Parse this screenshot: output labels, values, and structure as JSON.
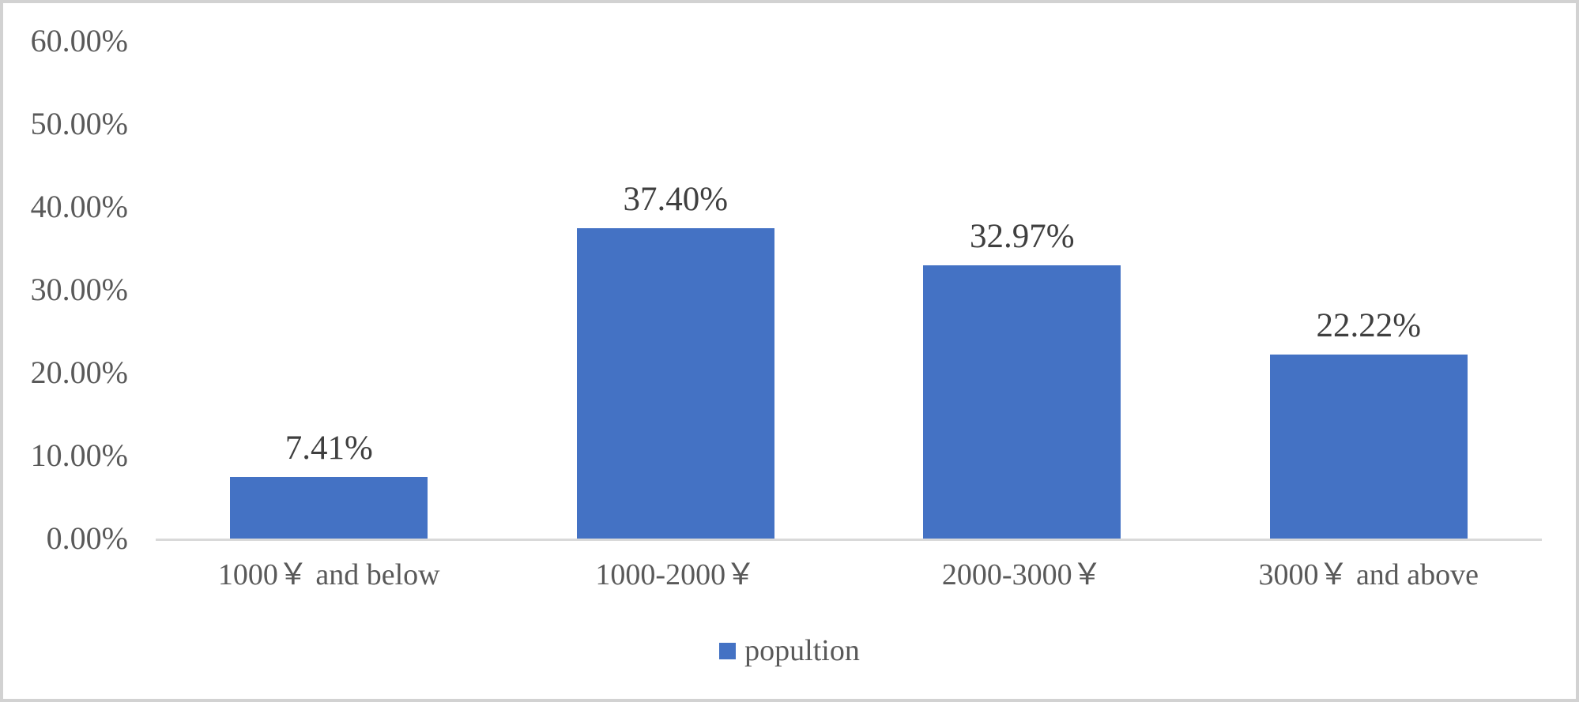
{
  "chart_data": {
    "type": "bar",
    "categories": [
      "1000￥ and below",
      "1000-2000￥",
      "2000-3000￥",
      "3000￥ and above"
    ],
    "values": [
      7.41,
      37.4,
      32.97,
      22.22
    ],
    "data_labels": [
      "7.41%",
      "37.40%",
      "32.97%",
      "22.22%"
    ],
    "series_name": "popultion",
    "title": "",
    "xlabel": "",
    "ylabel": "",
    "ylim": [
      0,
      60
    ],
    "y_tick_values": [
      0,
      10,
      20,
      30,
      40,
      50,
      60
    ],
    "y_tick_labels": [
      "0.00%",
      "10.00%",
      "20.00%",
      "30.00%",
      "40.00%",
      "50.00%",
      "60.00%"
    ],
    "grid": false,
    "legend_position": "bottom",
    "colors": {
      "bar": "#4472c4",
      "axis_line": "#d9d9d9",
      "tick_text": "#595959",
      "category_text": "#595959",
      "data_label_text": "#3f3f3f",
      "legend_text": "#595959",
      "frame_border": "#d2d2d2"
    }
  },
  "legend": {
    "label": "popultion"
  }
}
